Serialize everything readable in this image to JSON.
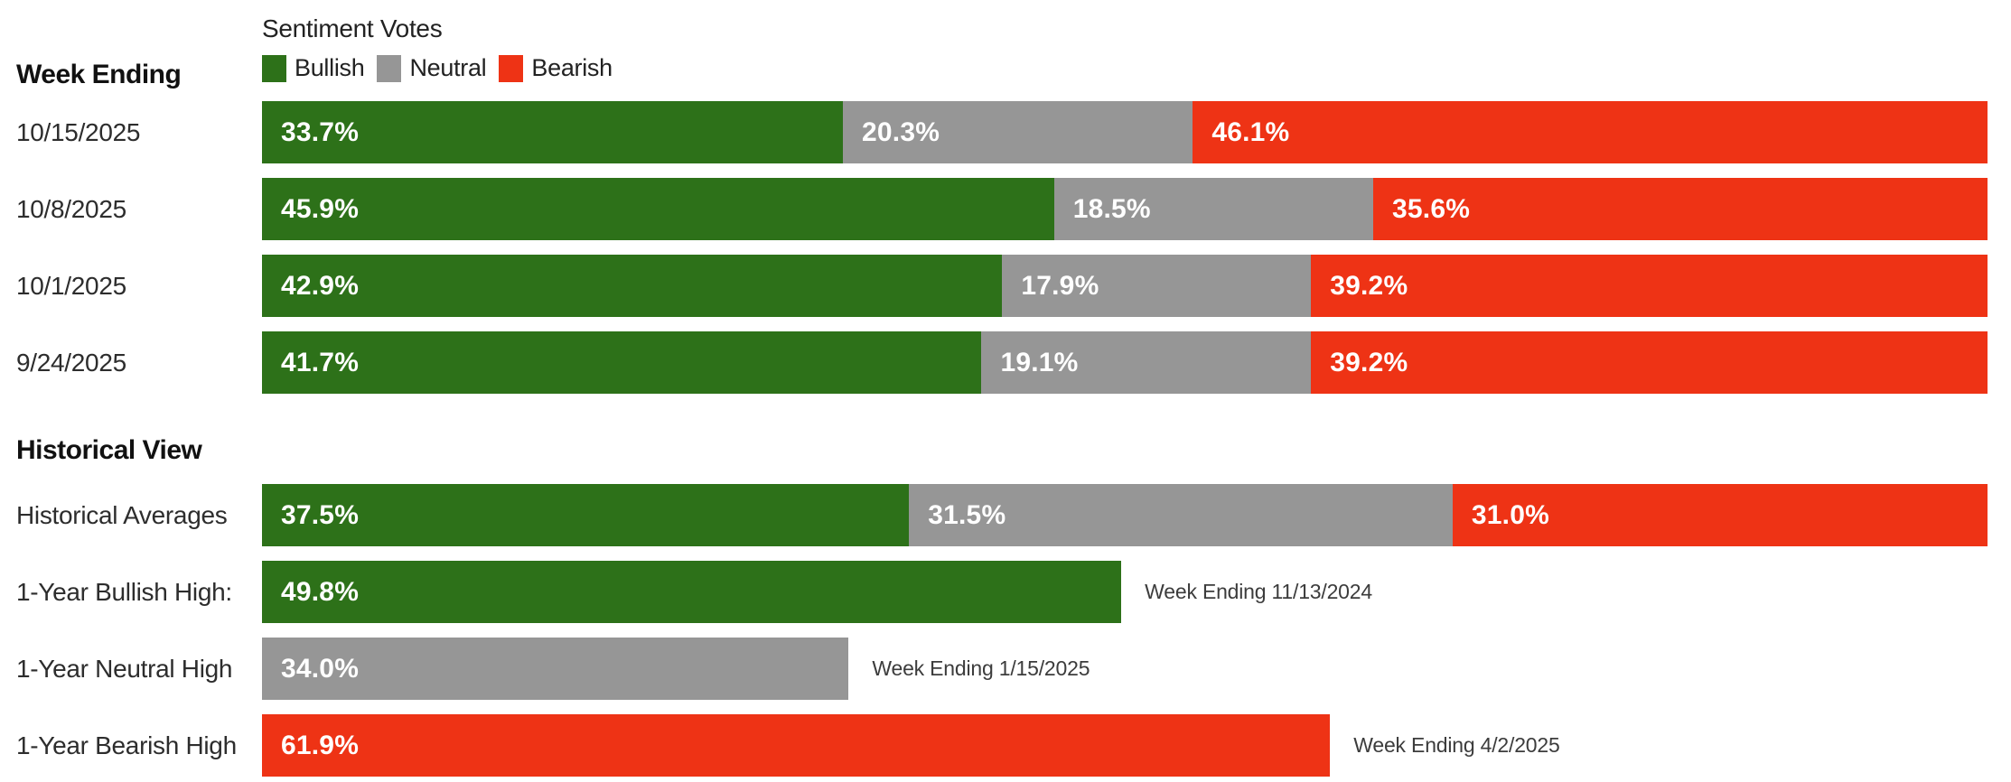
{
  "header": {
    "week_ending_label": "Week Ending",
    "chart_title": "Sentiment Votes",
    "legend": [
      {
        "name": "bullish",
        "label": "Bullish",
        "color": "#2d7119"
      },
      {
        "name": "neutral",
        "label": "Neutral",
        "color": "#969696"
      },
      {
        "name": "bearish",
        "label": "Bearish",
        "color": "#ee3315"
      }
    ]
  },
  "sections": {
    "historical_heading": "Historical View"
  },
  "colors": {
    "bullish": "#2d7119",
    "neutral": "#969696",
    "bearish": "#ee3315",
    "bar_text": "#ffffff",
    "label_text": "#2d2d2d",
    "heading_text": "#111111"
  },
  "chart_data": {
    "type": "bar",
    "orientation": "horizontal-stacked",
    "title": "Sentiment Votes",
    "legend_entries": [
      "Bullish",
      "Neutral",
      "Bearish"
    ],
    "value_format": "percent-one-decimal",
    "axis_range_percent": [
      0,
      100
    ],
    "weekly_rows": [
      {
        "label": "10/15/2025",
        "segments": [
          {
            "series": "bullish",
            "value": 33.7
          },
          {
            "series": "neutral",
            "value": 20.3
          },
          {
            "series": "bearish",
            "value": 46.1
          }
        ]
      },
      {
        "label": "10/8/2025",
        "segments": [
          {
            "series": "bullish",
            "value": 45.9
          },
          {
            "series": "neutral",
            "value": 18.5
          },
          {
            "series": "bearish",
            "value": 35.6
          }
        ]
      },
      {
        "label": "10/1/2025",
        "segments": [
          {
            "series": "bullish",
            "value": 42.9
          },
          {
            "series": "neutral",
            "value": 17.9
          },
          {
            "series": "bearish",
            "value": 39.2
          }
        ]
      },
      {
        "label": "9/24/2025",
        "segments": [
          {
            "series": "bullish",
            "value": 41.7
          },
          {
            "series": "neutral",
            "value": 19.1
          },
          {
            "series": "bearish",
            "value": 39.2
          }
        ]
      }
    ],
    "historical_rows": [
      {
        "label": "Historical Averages",
        "segments": [
          {
            "series": "bullish",
            "value": 37.5
          },
          {
            "series": "neutral",
            "value": 31.5
          },
          {
            "series": "bearish",
            "value": 31.0
          }
        ]
      },
      {
        "label": "1-Year Bullish High:",
        "segments": [
          {
            "series": "bullish",
            "value": 49.8
          }
        ],
        "annotation": "Week Ending 11/13/2024"
      },
      {
        "label": "1-Year Neutral High",
        "segments": [
          {
            "series": "neutral",
            "value": 34.0
          }
        ],
        "annotation": "Week Ending 1/15/2025"
      },
      {
        "label": "1-Year Bearish High",
        "segments": [
          {
            "series": "bearish",
            "value": 61.9
          }
        ],
        "annotation": "Week Ending 4/2/2025"
      }
    ]
  }
}
